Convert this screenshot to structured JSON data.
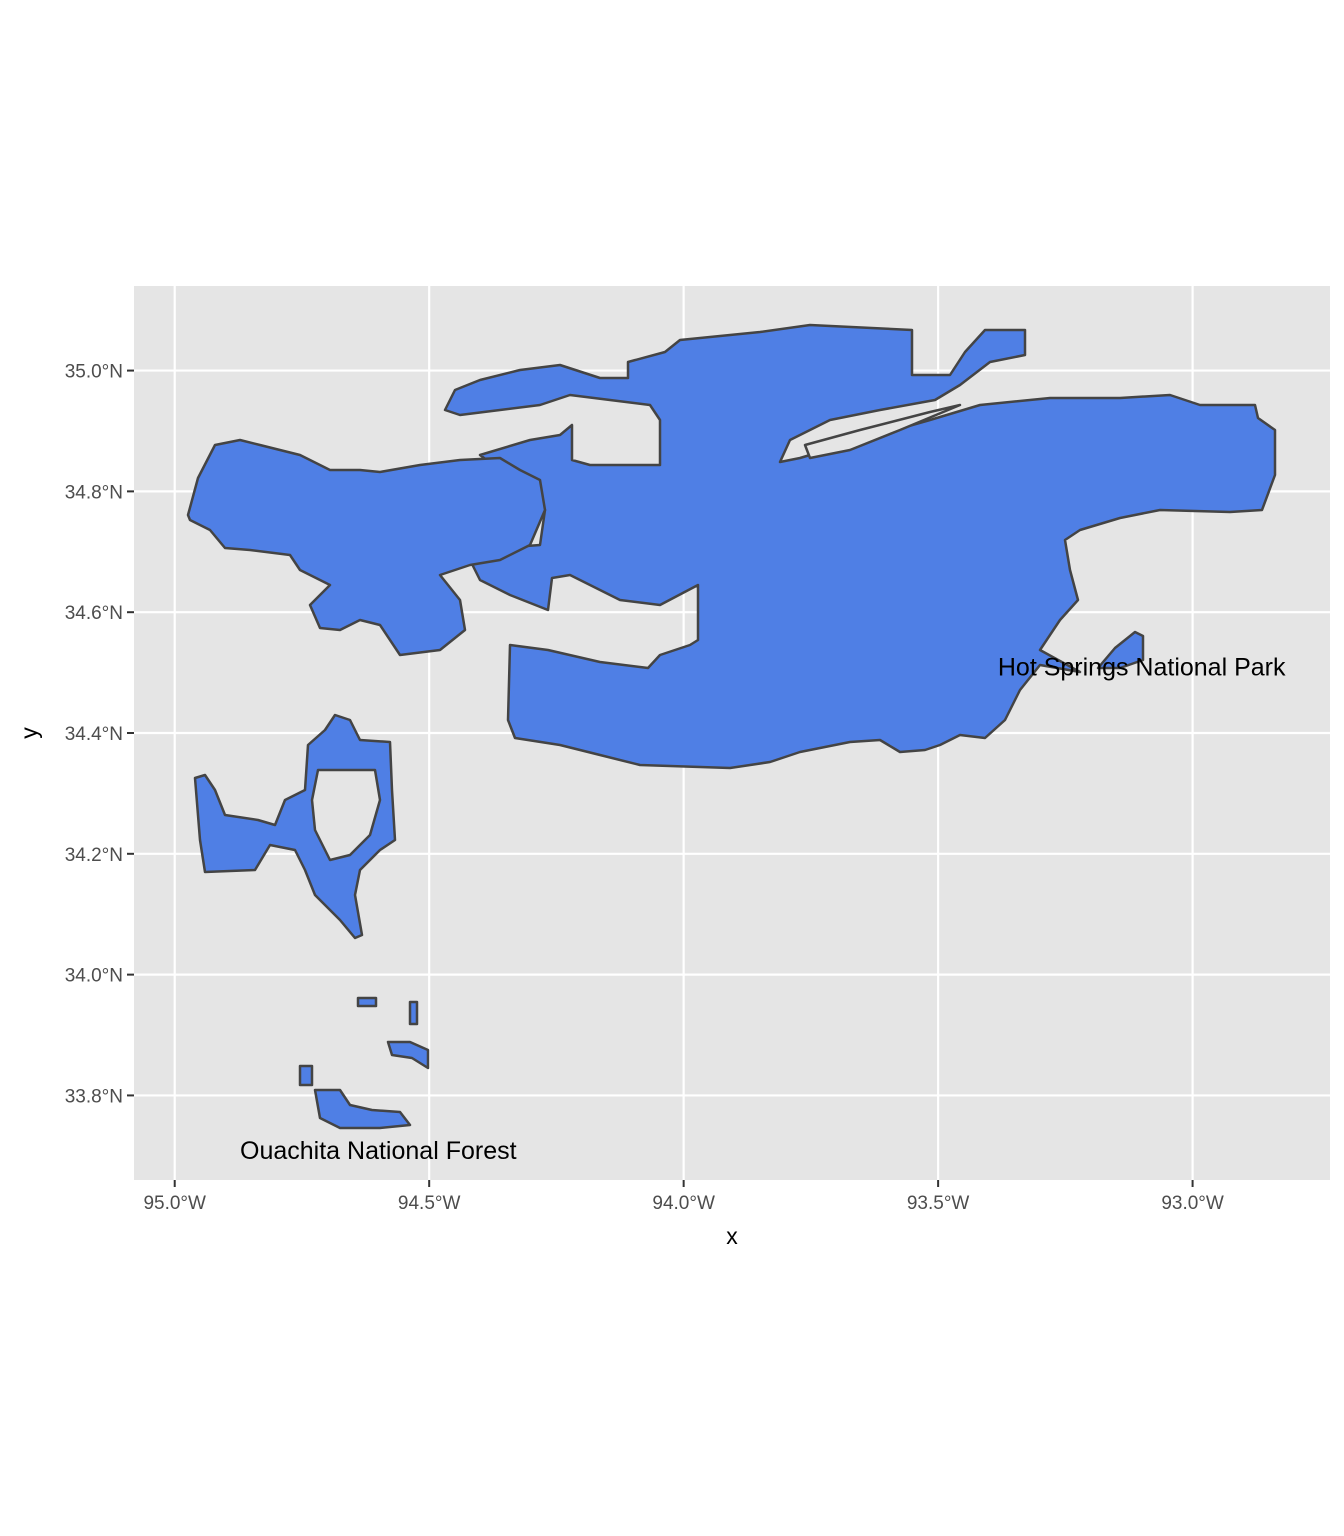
{
  "map": {
    "x_axis_title": "x",
    "y_axis_title": "y",
    "x_ticks": [
      "95.0°W",
      "94.5°W",
      "94.0°W",
      "93.5°W",
      "93.0°W"
    ],
    "y_ticks": [
      "35.0°N",
      "34.8°N",
      "34.6°N",
      "34.4°N",
      "34.2°N",
      "34.0°N",
      "33.8°N"
    ],
    "x_tick_values": [
      -95.0,
      -94.5,
      -94.0,
      -93.5,
      -93.0
    ],
    "y_tick_values": [
      35.0,
      34.8,
      34.6,
      34.4,
      34.2,
      34.0,
      33.8
    ],
    "x_range": [
      -95.08,
      -92.73
    ],
    "y_range": [
      33.66,
      35.14
    ],
    "labels": [
      {
        "text": "Hot Springs National Park",
        "lon": -93.1,
        "lat": 34.51
      },
      {
        "text": "Ouachita National Forest",
        "lon": -94.6,
        "lat": 33.71
      }
    ],
    "colors": {
      "panel": "#e5e5e5",
      "grid": "#ffffff",
      "fill": "#4f7fe5",
      "stroke": "#444444"
    }
  }
}
